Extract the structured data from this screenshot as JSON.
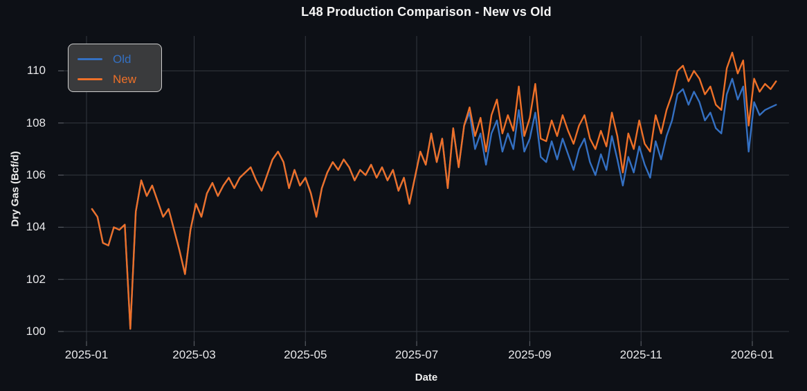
{
  "title": "L48 Production Comparison - New vs Old",
  "colors": {
    "background": "#0d1016",
    "grid": "#343840",
    "tick_mark": "#565a61",
    "text": "#f0f0f0",
    "old_line": "#3470c2",
    "new_line": "#ee7028",
    "legend_face": "#3a3b3d",
    "legend_border": "#cfcfcf"
  },
  "legend": {
    "items": [
      {
        "label": "Old",
        "color": "#3470c2"
      },
      {
        "label": "New",
        "color": "#ee7028"
      }
    ]
  },
  "chart_data": {
    "type": "line",
    "title": "L48 Production Comparison - New vs Old",
    "xlabel": "Date",
    "ylabel": "Dry Gas (Bcf/d)",
    "grid": true,
    "legend_position": "upper left",
    "ylim": [
      99.6,
      111.3
    ],
    "y_ticks": [
      100,
      102,
      104,
      106,
      108,
      110
    ],
    "x_ticks": [
      "2025-01-01",
      "2025-03-01",
      "2025-05-01",
      "2025-07-01",
      "2025-09-01",
      "2025-11-01",
      "2026-01-01"
    ],
    "x_tick_labels": [
      "2025-01",
      "2025-03",
      "2025-05",
      "2025-07",
      "2025-09",
      "2025-11",
      "2026-01"
    ],
    "dates": [
      "2025-01-04",
      "2025-01-07",
      "2025-01-10",
      "2025-01-13",
      "2025-01-16",
      "2025-01-19",
      "2025-01-22",
      "2025-01-25",
      "2025-01-28",
      "2025-01-31",
      "2025-02-03",
      "2025-02-06",
      "2025-02-09",
      "2025-02-12",
      "2025-02-15",
      "2025-02-18",
      "2025-02-21",
      "2025-02-24",
      "2025-02-27",
      "2025-03-02",
      "2025-03-05",
      "2025-03-08",
      "2025-03-11",
      "2025-03-14",
      "2025-03-17",
      "2025-03-20",
      "2025-03-23",
      "2025-03-26",
      "2025-03-29",
      "2025-04-01",
      "2025-04-04",
      "2025-04-07",
      "2025-04-10",
      "2025-04-13",
      "2025-04-16",
      "2025-04-19",
      "2025-04-22",
      "2025-04-25",
      "2025-04-28",
      "2025-05-01",
      "2025-05-04",
      "2025-05-07",
      "2025-05-10",
      "2025-05-13",
      "2025-05-16",
      "2025-05-19",
      "2025-05-22",
      "2025-05-25",
      "2025-05-28",
      "2025-05-31",
      "2025-06-03",
      "2025-06-06",
      "2025-06-09",
      "2025-06-12",
      "2025-06-15",
      "2025-06-18",
      "2025-06-21",
      "2025-06-24",
      "2025-06-27",
      "2025-06-30",
      "2025-07-03",
      "2025-07-06",
      "2025-07-09",
      "2025-07-12",
      "2025-07-15",
      "2025-07-18",
      "2025-07-21",
      "2025-07-24",
      "2025-07-27",
      "2025-07-30",
      "2025-08-02",
      "2025-08-05",
      "2025-08-08",
      "2025-08-11",
      "2025-08-14",
      "2025-08-17",
      "2025-08-20",
      "2025-08-23",
      "2025-08-26",
      "2025-08-29",
      "2025-09-01",
      "2025-09-04",
      "2025-09-07",
      "2025-09-10",
      "2025-09-13",
      "2025-09-16",
      "2025-09-19",
      "2025-09-22",
      "2025-09-25",
      "2025-09-28",
      "2025-10-01",
      "2025-10-04",
      "2025-10-07",
      "2025-10-10",
      "2025-10-13",
      "2025-10-16",
      "2025-10-19",
      "2025-10-22",
      "2025-10-25",
      "2025-10-28",
      "2025-10-31",
      "2025-11-03",
      "2025-11-06",
      "2025-11-09",
      "2025-11-12",
      "2025-11-15",
      "2025-11-18",
      "2025-11-21",
      "2025-11-24",
      "2025-11-27",
      "2025-11-30",
      "2025-12-03",
      "2025-12-06",
      "2025-12-09",
      "2025-12-12",
      "2025-12-15",
      "2025-12-18",
      "2025-12-21",
      "2025-12-24",
      "2025-12-27",
      "2025-12-30",
      "2026-01-02",
      "2026-01-05",
      "2026-01-08",
      "2026-01-11",
      "2026-01-14"
    ],
    "series": [
      {
        "name": "Old",
        "color": "#3470c2",
        "values": [
          104.7,
          104.4,
          103.4,
          103.3,
          104.0,
          103.9,
          104.1,
          100.1,
          104.6,
          105.8,
          105.2,
          105.6,
          105.0,
          104.4,
          104.7,
          103.9,
          103.1,
          102.2,
          103.9,
          104.9,
          104.4,
          105.3,
          105.7,
          105.2,
          105.6,
          105.9,
          105.5,
          105.9,
          106.1,
          106.3,
          105.8,
          105.4,
          106.0,
          106.6,
          106.9,
          106.5,
          105.5,
          106.2,
          105.6,
          105.9,
          105.3,
          104.4,
          105.5,
          106.1,
          106.5,
          106.2,
          106.6,
          106.3,
          105.8,
          106.2,
          106.0,
          106.4,
          105.9,
          106.3,
          105.8,
          106.2,
          105.4,
          105.9,
          104.9,
          105.9,
          106.9,
          106.4,
          107.6,
          106.5,
          107.4,
          105.5,
          107.8,
          106.3,
          107.9,
          108.4,
          107.0,
          107.6,
          106.4,
          107.6,
          108.1,
          106.9,
          107.6,
          107.0,
          108.5,
          106.9,
          107.4,
          108.4,
          106.7,
          106.5,
          107.3,
          106.6,
          107.4,
          106.8,
          106.2,
          107.0,
          107.4,
          106.5,
          106.0,
          106.8,
          106.2,
          107.5,
          106.6,
          105.6,
          106.7,
          106.1,
          107.1,
          106.4,
          105.9,
          107.3,
          106.6,
          107.5,
          108.1,
          109.1,
          109.3,
          108.7,
          109.2,
          108.8,
          108.1,
          108.4,
          107.8,
          107.6,
          109.1,
          109.7,
          108.9,
          109.4,
          106.9,
          108.8,
          108.3,
          108.5,
          108.6,
          108.7
        ]
      },
      {
        "name": "New",
        "color": "#ee7028",
        "values": [
          104.7,
          104.4,
          103.4,
          103.3,
          104.0,
          103.9,
          104.1,
          100.1,
          104.6,
          105.8,
          105.2,
          105.6,
          105.0,
          104.4,
          104.7,
          103.9,
          103.1,
          102.2,
          103.9,
          104.9,
          104.4,
          105.3,
          105.7,
          105.2,
          105.6,
          105.9,
          105.5,
          105.9,
          106.1,
          106.3,
          105.8,
          105.4,
          106.0,
          106.6,
          106.9,
          106.5,
          105.5,
          106.2,
          105.6,
          105.9,
          105.3,
          104.4,
          105.5,
          106.1,
          106.5,
          106.2,
          106.6,
          106.3,
          105.8,
          106.2,
          106.0,
          106.4,
          105.9,
          106.3,
          105.8,
          106.2,
          105.4,
          105.9,
          104.9,
          105.9,
          106.9,
          106.4,
          107.6,
          106.5,
          107.4,
          105.5,
          107.8,
          106.3,
          107.9,
          108.6,
          107.5,
          108.2,
          106.9,
          108.3,
          108.9,
          107.6,
          108.3,
          107.7,
          109.4,
          107.5,
          108.2,
          109.5,
          107.4,
          107.3,
          108.1,
          107.5,
          108.3,
          107.7,
          107.2,
          107.9,
          108.3,
          107.4,
          107.0,
          107.7,
          107.1,
          108.4,
          107.5,
          106.1,
          107.6,
          107.0,
          108.1,
          107.2,
          106.9,
          108.3,
          107.6,
          108.5,
          109.1,
          110.0,
          110.2,
          109.6,
          110.0,
          109.7,
          109.1,
          109.4,
          108.7,
          108.5,
          110.1,
          110.7,
          109.9,
          110.4,
          107.9,
          109.7,
          109.2,
          109.5,
          109.3,
          109.6
        ]
      }
    ]
  }
}
